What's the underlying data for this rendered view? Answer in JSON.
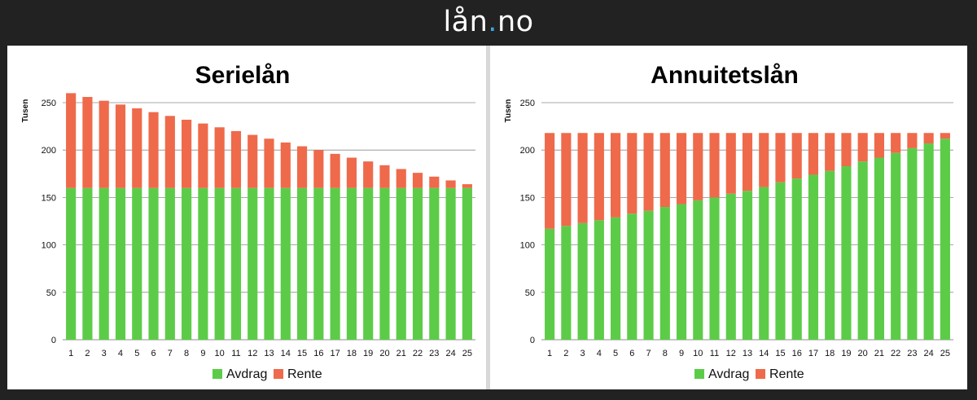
{
  "header": {
    "logo_main": "lån",
    "logo_dot": ".",
    "logo_end": "no",
    "dot_color": "#3aa6e0"
  },
  "colors": {
    "avdrag": "#5ccc48",
    "rente": "#ee6a4b",
    "grid": "#8c8c8c"
  },
  "chart_data": [
    {
      "type": "bar",
      "stacked": true,
      "title": "Serielån",
      "xlabel": "",
      "ylabel": "Tusen",
      "ylim": [
        0,
        250
      ],
      "yticks": [
        0,
        50,
        100,
        150,
        200,
        250
      ],
      "grid": true,
      "legend_position": "bottom",
      "categories": [
        "1",
        "2",
        "3",
        "4",
        "5",
        "6",
        "7",
        "8",
        "9",
        "10",
        "11",
        "12",
        "13",
        "14",
        "15",
        "16",
        "17",
        "18",
        "19",
        "20",
        "21",
        "22",
        "23",
        "24",
        "25"
      ],
      "series": [
        {
          "name": "Avdrag",
          "values": [
            160,
            160,
            160,
            160,
            160,
            160,
            160,
            160,
            160,
            160,
            160,
            160,
            160,
            160,
            160,
            160,
            160,
            160,
            160,
            160,
            160,
            160,
            160,
            160,
            160
          ]
        },
        {
          "name": "Rente",
          "values": [
            100,
            96,
            92,
            88,
            84,
            80,
            76,
            72,
            68,
            64,
            60,
            56,
            52,
            48,
            44,
            40,
            36,
            32,
            28,
            24,
            20,
            16,
            12,
            8,
            4
          ]
        }
      ]
    },
    {
      "type": "bar",
      "stacked": true,
      "title": "Annuitetslån",
      "xlabel": "",
      "ylabel": "Tusen",
      "ylim": [
        0,
        250
      ],
      "yticks": [
        0,
        50,
        100,
        150,
        200,
        250
      ],
      "grid": true,
      "legend_position": "bottom",
      "categories": [
        "1",
        "2",
        "3",
        "4",
        "5",
        "6",
        "7",
        "8",
        "9",
        "10",
        "11",
        "12",
        "13",
        "14",
        "15",
        "16",
        "17",
        "18",
        "19",
        "20",
        "21",
        "22",
        "23",
        "24",
        "25"
      ],
      "series": [
        {
          "name": "Avdrag",
          "values": [
            117,
            120,
            123,
            126,
            129,
            133,
            136,
            140,
            143,
            147,
            150,
            154,
            157,
            161,
            166,
            170,
            174,
            178,
            183,
            188,
            192,
            197,
            202,
            207,
            212
          ]
        },
        {
          "name": "Rente",
          "values": [
            101,
            98,
            95,
            92,
            89,
            85,
            82,
            78,
            75,
            71,
            68,
            64,
            61,
            57,
            52,
            48,
            44,
            40,
            35,
            30,
            26,
            21,
            16,
            11,
            6
          ]
        }
      ]
    }
  ]
}
